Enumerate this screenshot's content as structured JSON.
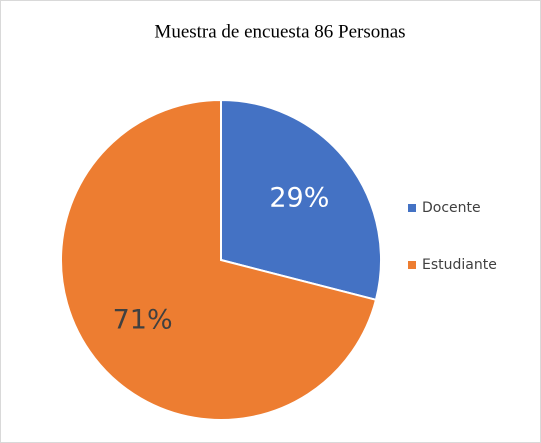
{
  "chart_data": {
    "type": "pie",
    "title": "Muestra de encuesta 86 Personas",
    "categories": [
      "Docente",
      "Estudiante"
    ],
    "values": [
      29,
      71
    ],
    "value_labels": [
      "29%",
      "71%"
    ],
    "colors": [
      "#4472c4",
      "#ed7d31"
    ],
    "legend": "right"
  }
}
